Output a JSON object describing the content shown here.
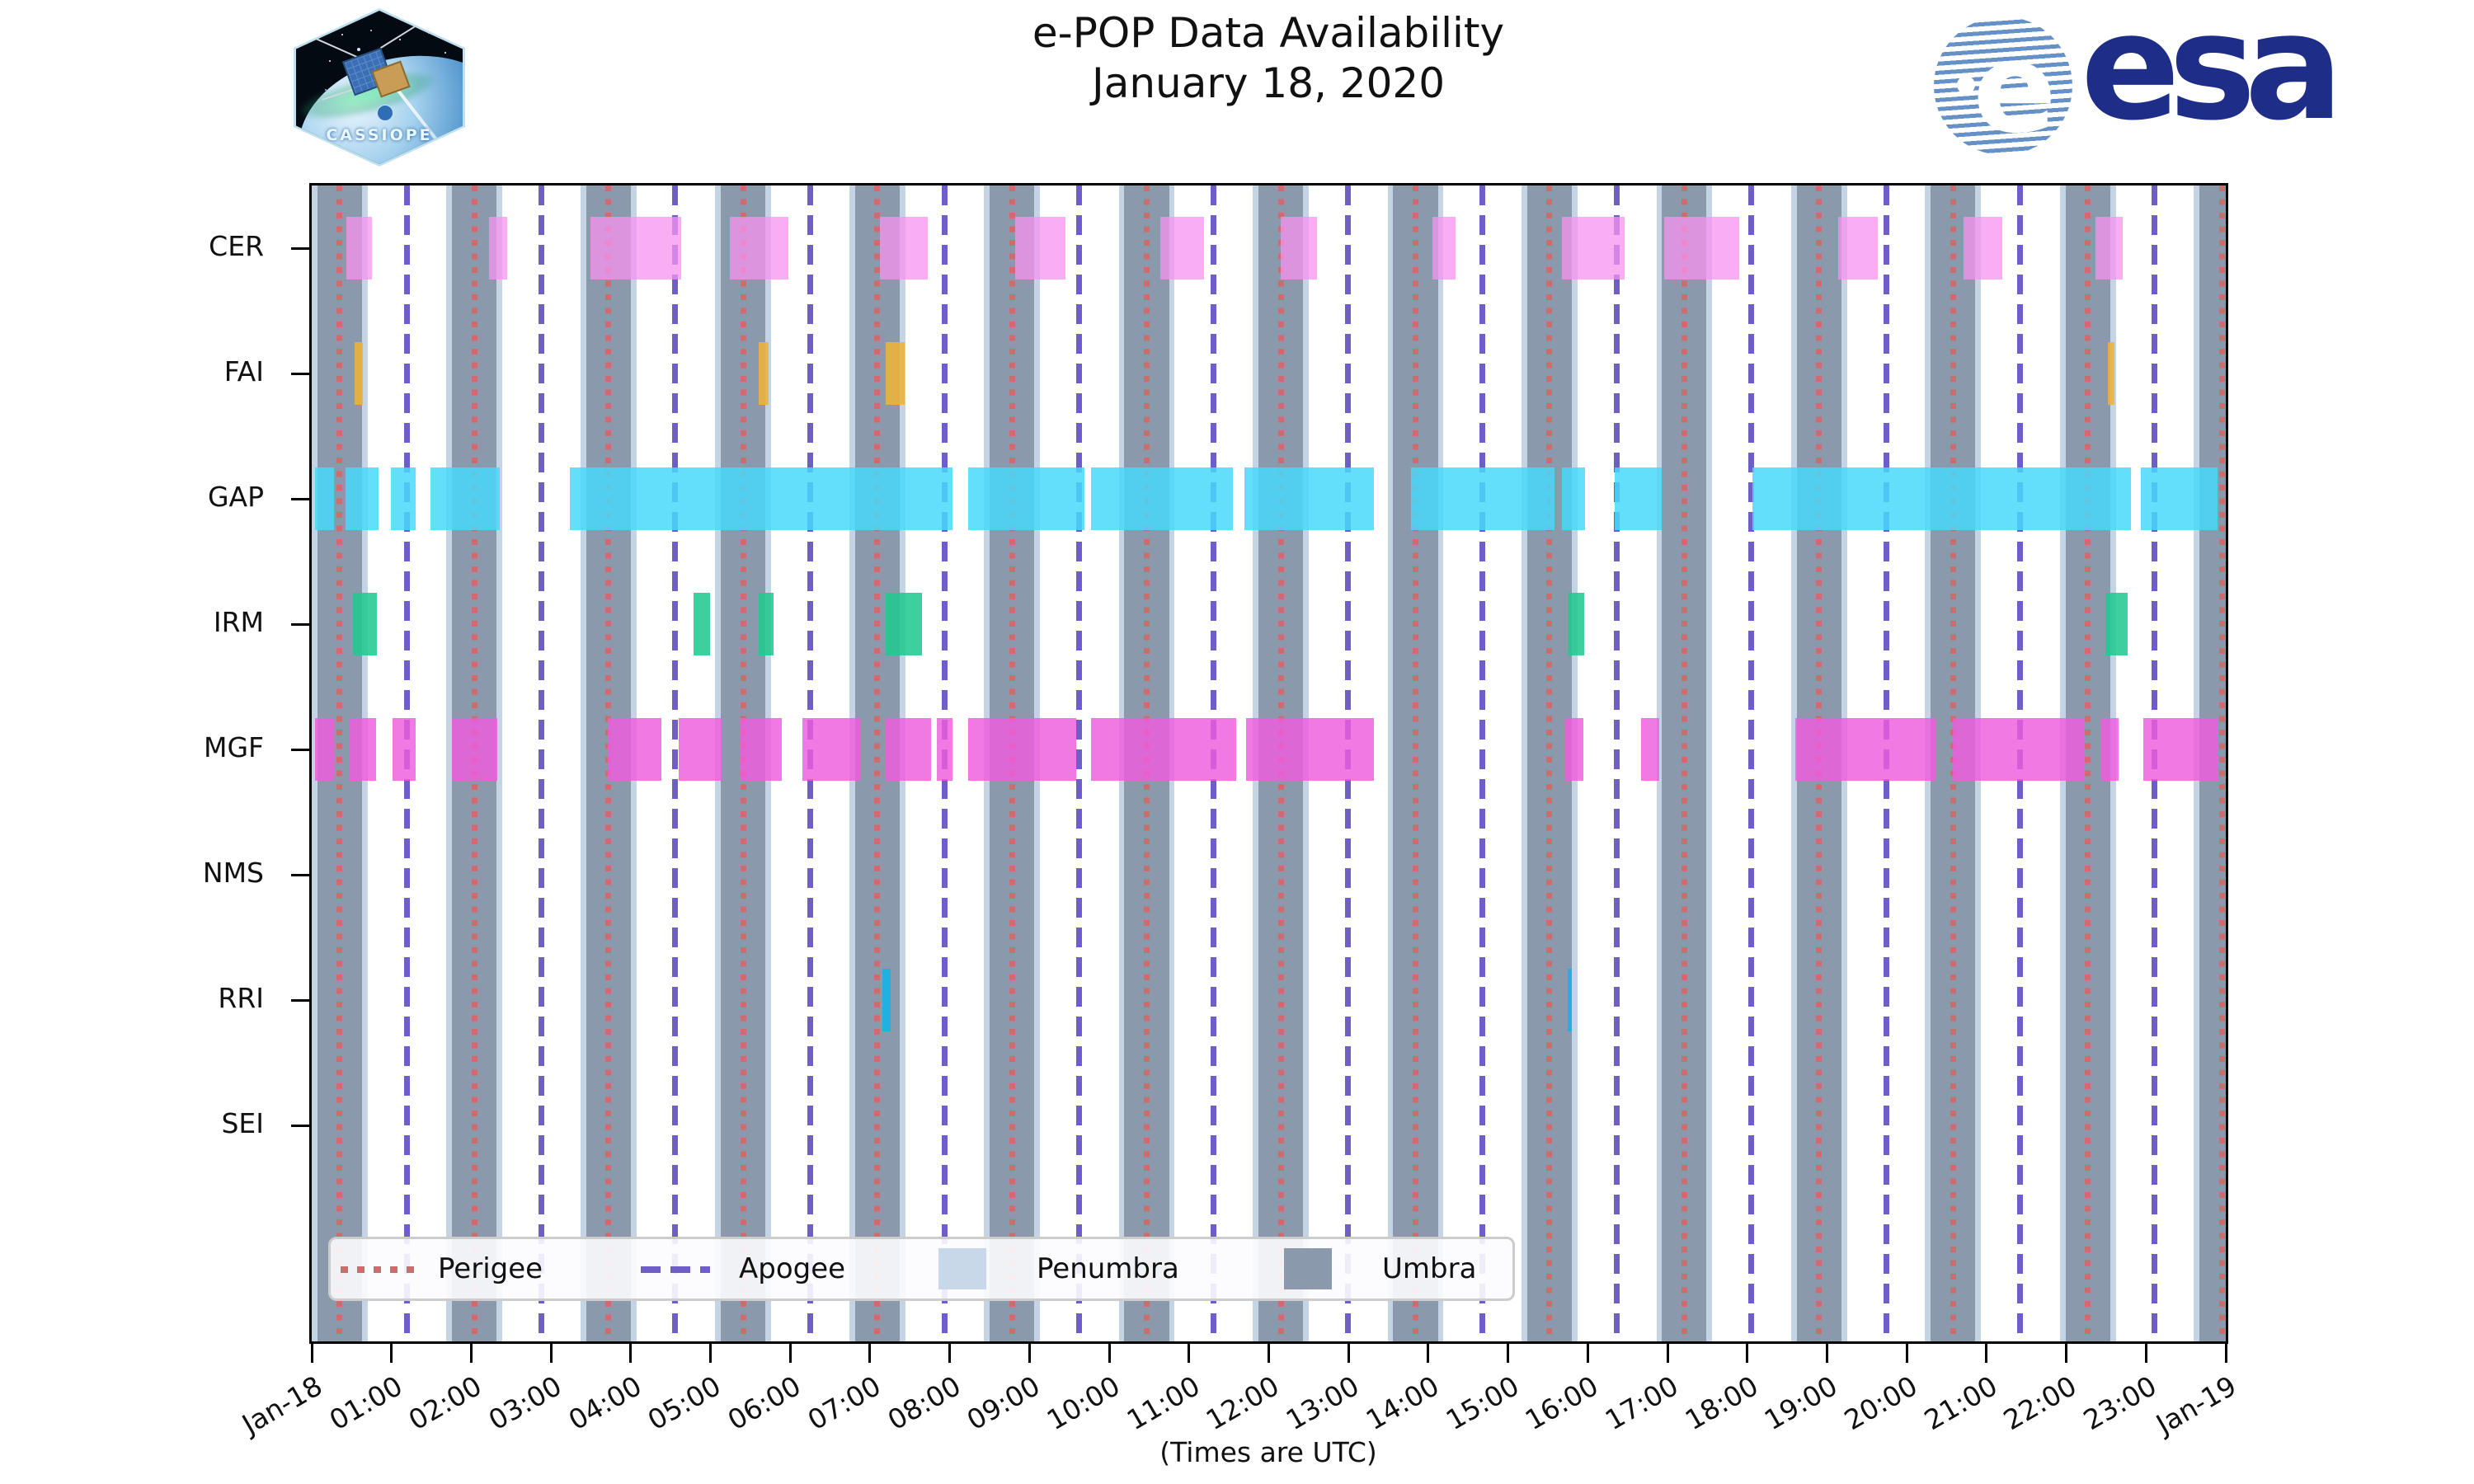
{
  "header": {
    "title": "e-POP Data Availability",
    "subtitle": "January 18, 2020"
  },
  "logos": {
    "cassiope_label": "CASSIOPE",
    "esa_label": "esa"
  },
  "axis": {
    "x_ticks": [
      "Jan-18",
      "01:00",
      "02:00",
      "03:00",
      "04:00",
      "05:00",
      "06:00",
      "07:00",
      "08:00",
      "09:00",
      "10:00",
      "11:00",
      "12:00",
      "13:00",
      "14:00",
      "15:00",
      "16:00",
      "17:00",
      "18:00",
      "19:00",
      "20:00",
      "21:00",
      "22:00",
      "23:00",
      "Jan-19"
    ],
    "x_caption": "(Times are UTC)",
    "y_labels": [
      "CER",
      "FAI",
      "GAP",
      "IRM",
      "MGF",
      "NMS",
      "RRI",
      "SEI"
    ]
  },
  "legend": {
    "items": [
      {
        "label": "Perigee",
        "style": "dotted-line",
        "color": "#cf6a6e"
      },
      {
        "label": "Apogee",
        "style": "dashed-line",
        "color": "#6e5ec6"
      },
      {
        "label": "Penumbra",
        "style": "patch",
        "color": "#c9d8e9"
      },
      {
        "label": "Umbra",
        "style": "patch",
        "color": "#8a99ab"
      }
    ]
  },
  "chart_data": {
    "type": "timeline-availability",
    "title": "e-POP Data Availability",
    "subtitle": "January 18, 2020",
    "x_unit": "hours UTC on 2020-01-18",
    "x_range_hours": [
      0,
      24
    ],
    "colors": {
      "umbra": "#8a99ab",
      "penumbra": "#c5d4e4",
      "perigee": "#cf6a6e",
      "apogee": "#6e5ec6"
    },
    "orbit": {
      "perigee_times": [
        0.35,
        2.04,
        3.72,
        5.41,
        7.09,
        8.78,
        10.47,
        12.15,
        13.84,
        15.52,
        17.21,
        18.9,
        20.58,
        22.27,
        23.95
      ],
      "apogee_times": [
        1.19,
        2.88,
        4.56,
        6.25,
        7.94,
        9.62,
        11.31,
        12.99,
        14.68,
        16.36,
        18.05,
        19.74,
        21.42,
        23.11
      ],
      "umbra_halfwidth_hours": 0.28,
      "penumbra_halfwidth_hours": 0.35
    },
    "series": [
      {
        "name": "CER",
        "color": "rgba(247,147,240,0.75)",
        "segments": [
          [
            0.43,
            0.75
          ],
          [
            2.22,
            2.45
          ],
          [
            3.49,
            4.63
          ],
          [
            5.24,
            5.98
          ],
          [
            7.12,
            7.72
          ],
          [
            8.82,
            9.45
          ],
          [
            10.64,
            11.19
          ],
          [
            12.15,
            12.61
          ],
          [
            14.05,
            14.34
          ],
          [
            15.68,
            16.46
          ],
          [
            16.96,
            17.9
          ],
          [
            19.14,
            19.64
          ],
          [
            20.71,
            21.2
          ],
          [
            22.37,
            22.71
          ]
        ]
      },
      {
        "name": "FAI",
        "color": "rgba(238,179,58,0.88)",
        "segments": [
          [
            0.54,
            0.64
          ],
          [
            5.6,
            5.73
          ],
          [
            7.2,
            7.43
          ],
          [
            22.52,
            22.6
          ]
        ]
      },
      {
        "name": "GAP",
        "color": "rgba(72,216,250,0.85)",
        "segments": [
          [
            0.04,
            0.28
          ],
          [
            0.42,
            0.84
          ],
          [
            0.99,
            1.3
          ],
          [
            1.49,
            2.36
          ],
          [
            3.24,
            8.03
          ],
          [
            8.23,
            9.69
          ],
          [
            9.77,
            11.55
          ],
          [
            11.69,
            13.32
          ],
          [
            13.78,
            15.58
          ],
          [
            15.68,
            15.97
          ],
          [
            16.34,
            16.93
          ],
          [
            18.06,
            22.81
          ],
          [
            22.94,
            23.9
          ]
        ]
      },
      {
        "name": "IRM",
        "color": "rgba(34,200,144,0.88)",
        "segments": [
          [
            0.52,
            0.82
          ],
          [
            4.79,
            4.99
          ],
          [
            5.6,
            5.79
          ],
          [
            7.2,
            7.65
          ],
          [
            15.75,
            15.96
          ],
          [
            22.49,
            22.77
          ]
        ]
      },
      {
        "name": "MGF",
        "color": "rgba(238,92,222,0.82)",
        "segments": [
          [
            0.04,
            0.28
          ],
          [
            0.48,
            0.81
          ],
          [
            1.01,
            1.3
          ],
          [
            1.76,
            2.33
          ],
          [
            3.71,
            4.38
          ],
          [
            4.6,
            5.15
          ],
          [
            5.38,
            5.89
          ],
          [
            6.15,
            6.88
          ],
          [
            7.2,
            7.77
          ],
          [
            7.84,
            8.03
          ],
          [
            8.23,
            9.59
          ],
          [
            9.77,
            11.59
          ],
          [
            11.72,
            13.32
          ],
          [
            15.72,
            15.94
          ],
          [
            16.67,
            16.9
          ],
          [
            18.6,
            20.36
          ],
          [
            20.58,
            22.23
          ],
          [
            22.44,
            22.66
          ],
          [
            22.97,
            23.91
          ]
        ]
      },
      {
        "name": "NMS",
        "color": "rgba(160,160,160,0.8)",
        "segments": []
      },
      {
        "name": "RRI",
        "color": "rgba(28,178,224,0.95)",
        "segments": [
          [
            7.16,
            7.26
          ],
          [
            15.75,
            15.8
          ]
        ]
      },
      {
        "name": "SEI",
        "color": "rgba(160,160,160,0.8)",
        "segments": []
      }
    ]
  }
}
